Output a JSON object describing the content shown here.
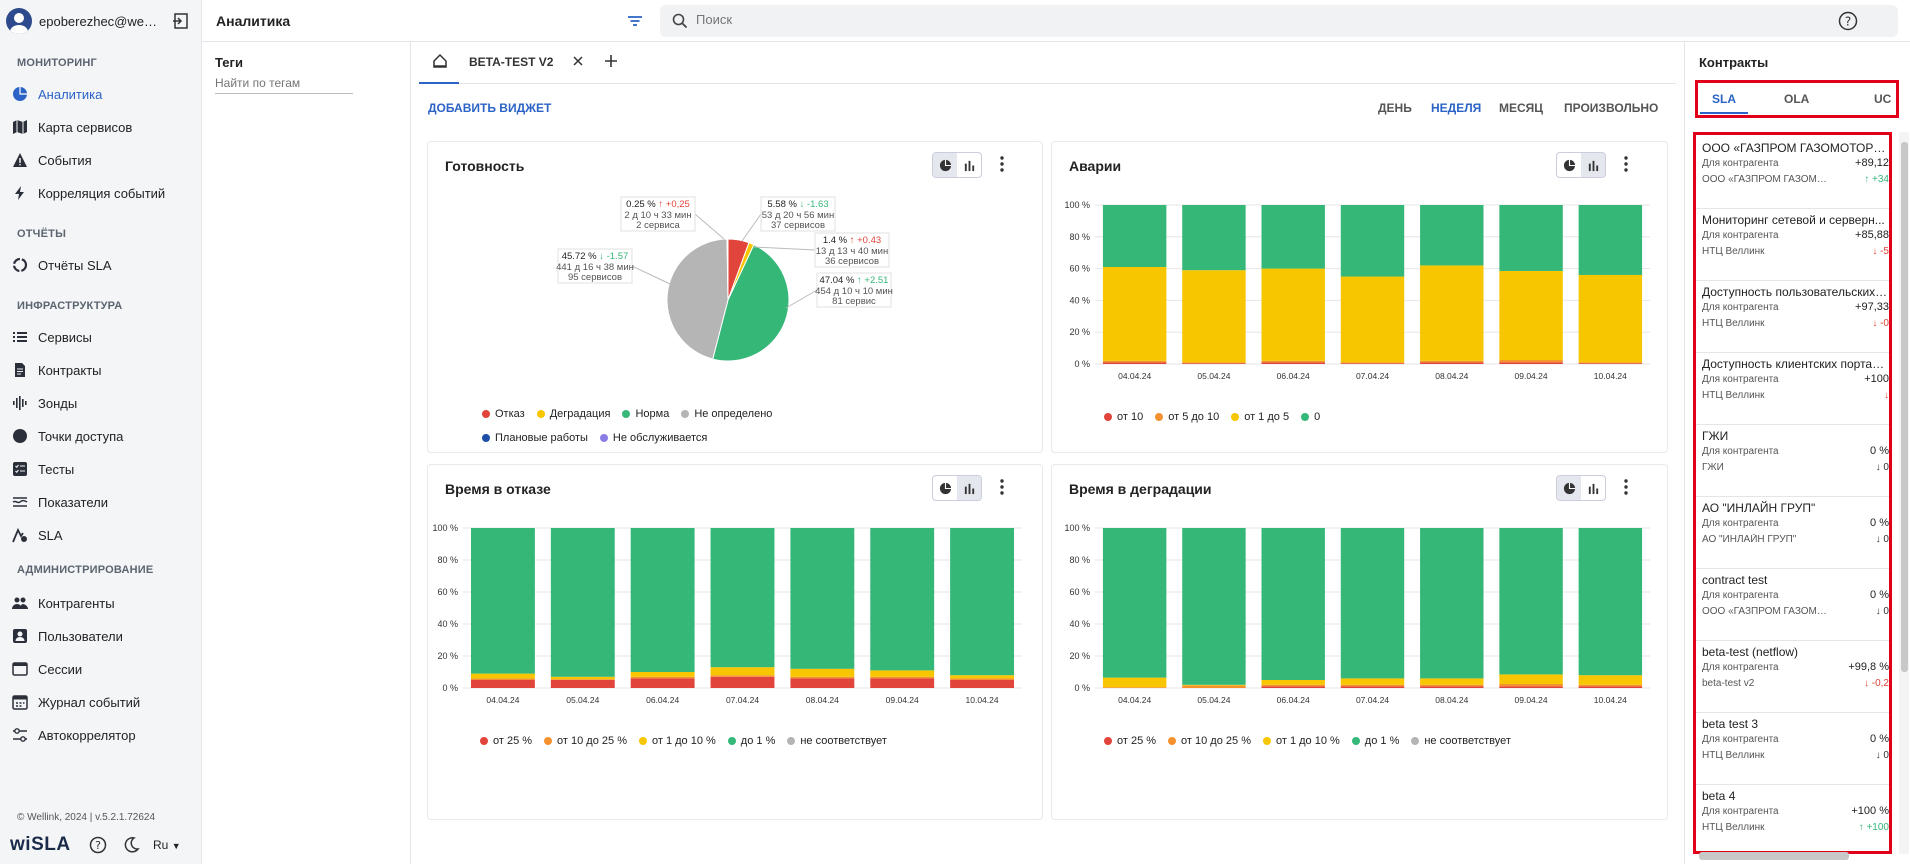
{
  "user": {
    "email": "epoberezhec@wellink"
  },
  "sidebar": {
    "sections": {
      "monitoring": "МОНИТОРИНГ",
      "reports": "ОТЧЁТЫ",
      "infrastructure": "ИНФРАСТРУКТУРА",
      "admin": "АДМИНИСТРИРОВАНИЕ"
    },
    "items": {
      "analytics": "Аналитика",
      "service_map": "Карта сервисов",
      "events": "События",
      "correlation": "Корреляция событий",
      "sla_reports": "Отчёты SLA",
      "services": "Сервисы",
      "contracts": "Контракты",
      "probes": "Зонды",
      "access_points": "Точки доступа",
      "tests": "Тесты",
      "indicators": "Показатели",
      "sla": "SLA",
      "counterparties": "Контрагенты",
      "users": "Пользователи",
      "sessions": "Сессии",
      "event_log": "Журнал событий",
      "autocorrelator": "Автокоррелятор"
    },
    "footer": {
      "copyright": "© Wellink, 2024 | v.5.2.1.72624",
      "logo_left": "wi",
      "logo_right": "SLA",
      "lang": "Ru"
    }
  },
  "topbar": {
    "title": "Аналитика",
    "search_placeholder": "Поиск"
  },
  "tags": {
    "title": "Теги",
    "search_placeholder": "Найти по тегам"
  },
  "dashboard": {
    "tab_label": "BETA-TEST V2",
    "add_widget": "ДОБАВИТЬ ВИДЖЕТ",
    "periods": [
      "ДЕНЬ",
      "НЕДЕЛЯ",
      "МЕСЯЦ",
      "ПРОИЗВОЛЬНО"
    ],
    "selected_period": "НЕДЕЛЯ"
  },
  "colors": {
    "accent": "#2b63c6",
    "red": "#e0443a",
    "orange": "#f5922f",
    "yellow": "#f7c600",
    "green": "#35b778",
    "gray": "#b5b5b5",
    "blue": "#1e4ea8",
    "purple": "#8a7ee6"
  },
  "chart_data": [
    {
      "type": "pie",
      "title": "Готовность",
      "slices": [
        {
          "name": "Отказ",
          "value": 5.58,
          "delta": "-1.63",
          "time": "53 д 20 ч 56 мин",
          "count": "37 сервисов",
          "color": "#e0443a"
        },
        {
          "name": "Деградация",
          "value": 1.4,
          "delta": "+0.43",
          "time": "13 д 13 ч 40 мин",
          "count": "36 сервисов",
          "color": "#f7c600"
        },
        {
          "name": "Норма",
          "value": 47.04,
          "delta": "+2.51",
          "time": "454 д 10 ч 10 мин",
          "count": "81 сервис",
          "color": "#35b778"
        },
        {
          "name": "Не определено",
          "value": 45.72,
          "delta": "-1.57",
          "time": "441 д 16 ч 38 мин",
          "count": "95 сервисов",
          "color": "#b5b5b5"
        },
        {
          "name": "Плановые работы",
          "value": 0.25,
          "delta": "+0.25",
          "time": "2 д 10 ч 33 мин",
          "count": "2 сервиса",
          "color": "#1e4ea8"
        }
      ],
      "labels": [
        {
          "pct": "0.25 %",
          "dir": "↑",
          "delta": "+0,25",
          "time": "2 д 10 ч 33 мин",
          "count": "2 сервиса",
          "up": true
        },
        {
          "pct": "5.58 %",
          "dir": "↓",
          "delta": "-1.63",
          "time": "53 д 20 ч 56 мин",
          "count": "37 сервисов",
          "up": false
        },
        {
          "pct": "1.4 %",
          "dir": "↑",
          "delta": "+0.43",
          "time": "13 д 13 ч 40 мин",
          "count": "36 сервисов",
          "up": true
        },
        {
          "pct": "47.04 %",
          "dir": "↑",
          "delta": "+2.51",
          "time": "454 д 10 ч 10 мин",
          "count": "81 сервис",
          "up": true
        },
        {
          "pct": "45.72 %",
          "dir": "↓",
          "delta": "-1.57",
          "time": "441 д 16 ч 38 мин",
          "count": "95 сервисов",
          "up": false
        }
      ],
      "legend": [
        {
          "name": "Отказ",
          "color": "#e0443a"
        },
        {
          "name": "Деградация",
          "color": "#f7c600"
        },
        {
          "name": "Норма",
          "color": "#35b778"
        },
        {
          "name": "Не определено",
          "color": "#b5b5b5"
        },
        {
          "name": "Плановые работы",
          "color": "#1e4ea8"
        },
        {
          "name": "Не обслуживается",
          "color": "#8a7ee6"
        }
      ]
    },
    {
      "type": "bar",
      "stacked": true,
      "title": "Аварии",
      "categories": [
        "04.04.24",
        "05.04.24",
        "06.04.24",
        "07.04.24",
        "08.04.24",
        "09.04.24",
        "10.04.24"
      ],
      "yticks": [
        "0 %",
        "20 %",
        "40 %",
        "60 %",
        "80 %",
        "100 %"
      ],
      "ylim": [
        0,
        100
      ],
      "series": [
        {
          "name": "от 10",
          "color": "#e0443a",
          "values": [
            1,
            0.5,
            1,
            0.5,
            1,
            1,
            0.5
          ]
        },
        {
          "name": "от 5 до 10",
          "color": "#f5922f",
          "values": [
            1,
            0.5,
            1,
            0.5,
            1,
            1.5,
            0.5
          ]
        },
        {
          "name": "от 1 до 5",
          "color": "#f7c600",
          "values": [
            59,
            58,
            58,
            54,
            60,
            56,
            55
          ]
        },
        {
          "name": "0",
          "color": "#35b778",
          "values": [
            39,
            41,
            40,
            45,
            38,
            41.5,
            44
          ]
        }
      ]
    },
    {
      "type": "bar",
      "stacked": true,
      "title": "Время в отказе",
      "categories": [
        "04.04.24",
        "05.04.24",
        "06.04.24",
        "07.04.24",
        "08.04.24",
        "09.04.24",
        "10.04.24"
      ],
      "yticks": [
        "0 %",
        "20 %",
        "40 %",
        "60 %",
        "80 %",
        "100 %"
      ],
      "ylim": [
        0,
        100
      ],
      "series": [
        {
          "name": "от 25 %",
          "color": "#e0443a",
          "values": [
            5,
            5,
            6,
            7,
            6,
            6,
            5
          ]
        },
        {
          "name": "от 10 до 25 %",
          "color": "#f5922f",
          "values": [
            1,
            0.5,
            1,
            1,
            1,
            1,
            1
          ]
        },
        {
          "name": "от 1 до 10 %",
          "color": "#f7c600",
          "values": [
            3,
            1.5,
            3,
            5,
            5,
            4,
            2
          ]
        },
        {
          "name": "до 1 %",
          "color": "#35b778",
          "values": [
            91,
            93,
            90,
            87,
            88,
            89,
            92
          ]
        },
        {
          "name": "не соответствует",
          "color": "#b5b5b5",
          "values": [
            0,
            0,
            0,
            0,
            0,
            0,
            0
          ]
        }
      ]
    },
    {
      "type": "bar",
      "stacked": true,
      "title": "Время в деградации",
      "categories": [
        "04.04.24",
        "05.04.24",
        "06.04.24",
        "07.04.24",
        "08.04.24",
        "09.04.24",
        "10.04.24"
      ],
      "yticks": [
        "0 %",
        "20 %",
        "40 %",
        "60 %",
        "80 %",
        "100 %"
      ],
      "ylim": [
        0,
        100
      ],
      "series": [
        {
          "name": "от 25 %",
          "color": "#e0443a",
          "values": [
            0,
            0,
            1,
            1,
            1,
            1,
            1
          ]
        },
        {
          "name": "от 10 до 25 %",
          "color": "#f5922f",
          "values": [
            0.5,
            1.5,
            1,
            1,
            1,
            1.5,
            1
          ]
        },
        {
          "name": "от 1 до 10 %",
          "color": "#f7c600",
          "values": [
            6,
            0.5,
            3,
            4,
            4,
            6,
            6
          ]
        },
        {
          "name": "до 1 %",
          "color": "#35b778",
          "values": [
            93.5,
            98,
            95,
            94,
            94,
            91.5,
            92
          ]
        },
        {
          "name": "не соответствует",
          "color": "#b5b5b5",
          "values": [
            0,
            0,
            0,
            0,
            0,
            0,
            0
          ]
        }
      ]
    }
  ],
  "contracts": {
    "title": "Контракты",
    "tabs": [
      "SLA",
      "OLA",
      "UC"
    ],
    "selected_tab": "SLA",
    "kind_label": "Для контрагента",
    "items": [
      {
        "name": "ООО «ГАЗПРОМ ГАЗОМОТОРН...",
        "value": "+89,12",
        "counterparty": "ООО «ГАЗПРОМ ГАЗОМОТ...",
        "delta": "↑ +34",
        "up": true
      },
      {
        "name": "Мониторинг сетевой и серверн...",
        "value": "+85,88",
        "counterparty": "НТЦ Веллинк",
        "delta": "↓ -5",
        "up": false
      },
      {
        "name": "Доступность пользовательских ...",
        "value": "+97,33",
        "counterparty": "НТЦ Веллинк",
        "delta": "↓ -0",
        "up": false
      },
      {
        "name": "Доступность клиентских портал...",
        "value": "+100",
        "counterparty": "НТЦ Веллинк",
        "delta": "↓",
        "up": false
      },
      {
        "name": "ГЖИ",
        "value": "0 %",
        "counterparty": "ГЖИ",
        "delta": "↓ 0",
        "up": null
      },
      {
        "name": "АО \"ИНЛАЙН ГРУП\"",
        "value": "0 %",
        "counterparty": "АО \"ИНЛАЙН ГРУП\"",
        "delta": "↓ 0",
        "up": null
      },
      {
        "name": "contract test",
        "value": "0 %",
        "counterparty": "ООО «ГАЗПРОМ ГАЗОМОТ...",
        "delta": "↓ 0",
        "up": null
      },
      {
        "name": "beta-test (netflow)",
        "value": "+99,8 %",
        "counterparty": "beta-test v2",
        "delta": "↓ -0,2",
        "up": false
      },
      {
        "name": "beta test 3",
        "value": "0 %",
        "counterparty": "НТЦ Веллинк",
        "delta": "↓ 0",
        "up": null
      },
      {
        "name": "beta 4",
        "value": "+100 %",
        "counterparty": "НТЦ Веллинк",
        "delta": "↑ +100",
        "up": true
      }
    ]
  }
}
